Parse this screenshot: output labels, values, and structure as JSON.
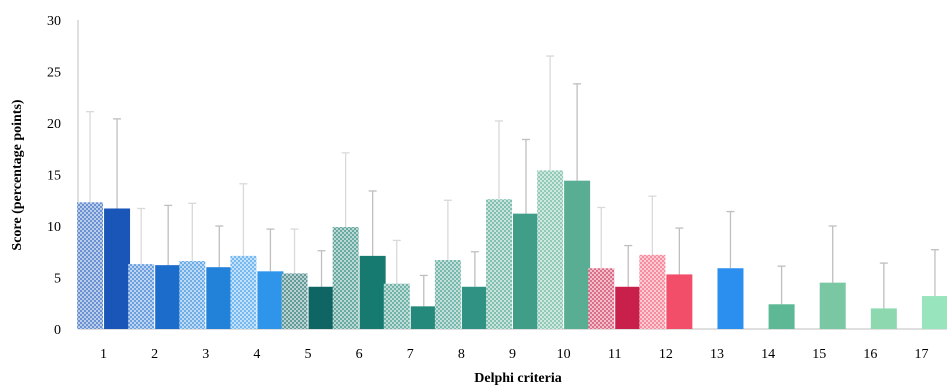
{
  "chart_data": {
    "type": "bar",
    "title": "",
    "xlabel": "Delphi criteria",
    "ylabel": "Score (percentage points)",
    "ylim": [
      0,
      30
    ],
    "yticks": [
      0,
      5,
      10,
      15,
      20,
      25,
      30
    ],
    "grid": false,
    "legend": "none",
    "error_bars": "upper only",
    "categories": [
      "1",
      "2",
      "3",
      "4",
      "5",
      "6",
      "7",
      "8",
      "9",
      "10",
      "11",
      "12",
      "13",
      "14",
      "15",
      "16",
      "17"
    ],
    "series": [
      {
        "pattern": "hatched",
        "values": [
          12.3,
          6.3,
          6.6,
          7.1,
          5.4,
          9.9,
          4.4,
          6.7,
          12.6,
          15.4,
          5.9,
          7.2,
          null,
          null,
          null,
          null,
          null
        ],
        "errors": [
          8.8,
          5.4,
          5.6,
          7.0,
          4.3,
          7.2,
          4.2,
          5.8,
          7.6,
          11.1,
          5.9,
          5.7,
          null,
          null,
          null,
          null,
          null
        ]
      },
      {
        "pattern": "solid",
        "values": [
          11.7,
          6.2,
          6.0,
          5.6,
          4.1,
          7.1,
          2.2,
          4.1,
          11.2,
          14.4,
          4.1,
          5.3,
          5.9,
          2.4,
          4.5,
          2.0,
          3.2
        ],
        "errors": [
          8.7,
          5.8,
          4.0,
          4.1,
          3.5,
          6.3,
          3.0,
          3.4,
          7.2,
          9.4,
          4.0,
          4.5,
          5.5,
          3.7,
          5.5,
          4.4,
          4.5
        ]
      }
    ],
    "colors": [
      "#1a56b8",
      "#1c6ccc",
      "#2281d8",
      "#2e95ea",
      "#0f6464",
      "#177a70",
      "#24897a",
      "#2f9282",
      "#409e88",
      "#58ad92",
      "#c8204a",
      "#f24e6a",
      "#2b8ff0",
      "#5db895",
      "#79c7a3",
      "#8ed8b0",
      "#98e4bd"
    ]
  }
}
